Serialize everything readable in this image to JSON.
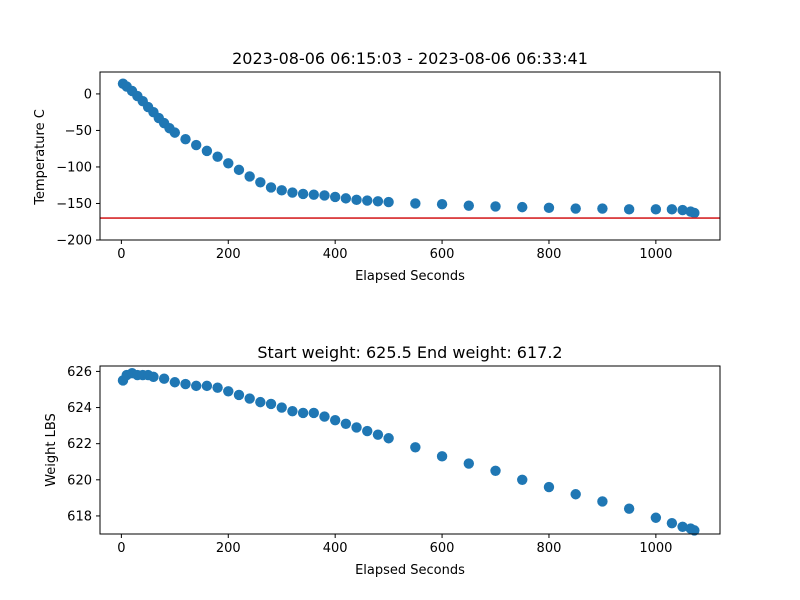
{
  "colors": {
    "series": "#1f77b4",
    "reference_line": "#d62728",
    "axes": "#000000"
  },
  "chart_data": [
    {
      "type": "scatter",
      "title": "2023-08-06 06:15:03 - 2023-08-06 06:33:41",
      "xlabel": "Elapsed Seconds",
      "ylabel": "Temperature C",
      "xlim": [
        -40,
        1120
      ],
      "ylim": [
        -200,
        30
      ],
      "xticks": [
        0,
        200,
        400,
        600,
        800,
        1000
      ],
      "xtick_labels": [
        "0",
        "200",
        "400",
        "600",
        "800",
        "1000"
      ],
      "yticks": [
        0,
        -50,
        -100,
        -150,
        -200
      ],
      "ytick_labels": [
        "0",
        "−50",
        "−100",
        "−150",
        "−200"
      ],
      "reference_line": {
        "y": -170,
        "color": "#d62728"
      },
      "grid": false,
      "series": [
        {
          "color": "#1f77b4",
          "x": [
            3,
            10,
            20,
            30,
            40,
            50,
            60,
            70,
            80,
            90,
            100,
            120,
            140,
            160,
            180,
            200,
            220,
            240,
            260,
            280,
            300,
            320,
            340,
            360,
            380,
            400,
            420,
            440,
            460,
            480,
            500,
            550,
            600,
            650,
            700,
            750,
            800,
            850,
            900,
            950,
            1000,
            1030,
            1050,
            1065,
            1072
          ],
          "y": [
            14,
            10,
            4,
            -3,
            -10,
            -18,
            -25,
            -33,
            -40,
            -47,
            -53,
            -62,
            -70,
            -78,
            -86,
            -95,
            -104,
            -113,
            -121,
            -128,
            -132,
            -135,
            -137,
            -138,
            -139,
            -141,
            -143,
            -145,
            -146,
            -147,
            -148,
            -150,
            -151,
            -153,
            -154,
            -155,
            -156,
            -157,
            -157,
            -158,
            -158,
            -158,
            -159,
            -161,
            -163
          ]
        }
      ]
    },
    {
      "type": "scatter",
      "title": "Start weight: 625.5 End weight: 617.2",
      "xlabel": "Elapsed Seconds",
      "ylabel": "Weight LBS",
      "xlim": [
        -40,
        1120
      ],
      "ylim": [
        617,
        626.3
      ],
      "xticks": [
        0,
        200,
        400,
        600,
        800,
        1000
      ],
      "xtick_labels": [
        "0",
        "200",
        "400",
        "600",
        "800",
        "1000"
      ],
      "yticks": [
        618,
        620,
        622,
        624,
        626
      ],
      "ytick_labels": [
        "618",
        "620",
        "622",
        "624",
        "626"
      ],
      "grid": false,
      "series": [
        {
          "color": "#1f77b4",
          "x": [
            3,
            10,
            20,
            30,
            40,
            50,
            60,
            80,
            100,
            120,
            140,
            160,
            180,
            200,
            220,
            240,
            260,
            280,
            300,
            320,
            340,
            360,
            380,
            400,
            420,
            440,
            460,
            480,
            500,
            550,
            600,
            650,
            700,
            750,
            800,
            850,
            900,
            950,
            1000,
            1030,
            1050,
            1065,
            1072
          ],
          "y": [
            625.5,
            625.8,
            625.9,
            625.8,
            625.8,
            625.8,
            625.7,
            625.6,
            625.4,
            625.3,
            625.2,
            625.2,
            625.1,
            624.9,
            624.7,
            624.5,
            624.3,
            624.2,
            624.0,
            623.8,
            623.7,
            623.7,
            623.5,
            623.3,
            623.1,
            622.9,
            622.7,
            622.5,
            622.3,
            621.8,
            621.3,
            620.9,
            620.5,
            620.0,
            619.6,
            619.2,
            618.8,
            618.4,
            617.9,
            617.6,
            617.4,
            617.3,
            617.2
          ]
        }
      ]
    }
  ]
}
